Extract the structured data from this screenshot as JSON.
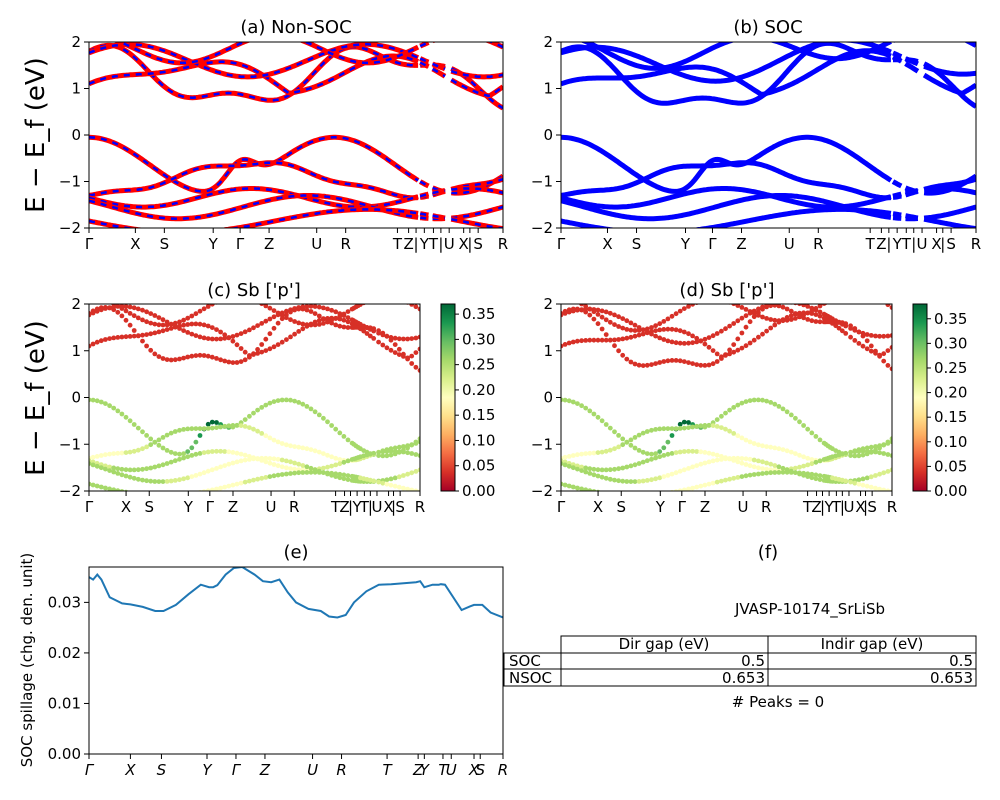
{
  "kpoint_labels": [
    "Γ",
    "X",
    "S",
    "Y",
    "Γ",
    "Z",
    "U",
    "R",
    "T",
    "Z",
    "|",
    "Y",
    "T",
    "|",
    "U",
    "X",
    "|",
    "S",
    "R"
  ],
  "kpoint_positions": [
    0,
    0.112,
    0.182,
    0.3,
    0.365,
    0.435,
    0.55,
    0.62,
    0.745,
    0.772,
    0.79,
    0.81,
    0.832,
    0.85,
    0.87,
    0.905,
    0.92,
    0.94,
    1.0
  ],
  "kpoint_labels_italic": [
    "Γ",
    "X",
    "S",
    "Y",
    "Γ",
    "Z",
    "U",
    "R",
    "T",
    "Z",
    "Y",
    "T",
    "U",
    "X",
    "S",
    "R"
  ],
  "kpoint_positions_italic": [
    0,
    0.1,
    0.175,
    0.285,
    0.355,
    0.425,
    0.54,
    0.61,
    0.72,
    0.795,
    0.81,
    0.855,
    0.875,
    0.93,
    0.945,
    1.0
  ],
  "band_ylabel": "E − E_f (eV)",
  "chart_data": [
    {
      "id": "a",
      "type": "line",
      "title": "(a) Non-SOC",
      "ylim": [
        -2,
        2
      ],
      "yticks": [
        -2,
        -1,
        0,
        1,
        2
      ],
      "series_style": "red-blue-dashed",
      "colors": {
        "base": "#ff0000",
        "dash": "#0000ff"
      }
    },
    {
      "id": "b",
      "type": "line",
      "title": "(b) SOC",
      "ylim": [
        -2,
        2
      ],
      "yticks": [
        -2,
        -1,
        0,
        1,
        2
      ],
      "series_style": "blue-solid",
      "colors": {
        "base": "#0000ff"
      }
    },
    {
      "id": "c",
      "type": "scatter",
      "title": "(c)  Sb ['p']",
      "ylim": [
        -2,
        2
      ],
      "yticks": [
        -2,
        -1,
        0,
        1,
        2
      ],
      "colormap": "RdYlGn",
      "colorbar": {
        "min": 0.0,
        "max": 0.37,
        "ticks": [
          "0.00",
          "0.05",
          "0.10",
          "0.15",
          "0.20",
          "0.25",
          "0.30",
          "0.35"
        ]
      }
    },
    {
      "id": "d",
      "type": "scatter",
      "title": "(d) Sb ['p']",
      "ylim": [
        -2,
        2
      ],
      "yticks": [
        -2,
        -1,
        0,
        1,
        2
      ],
      "colormap": "RdYlGn",
      "colorbar": {
        "min": 0.0,
        "max": 0.38,
        "ticks": [
          "0.00",
          "0.05",
          "0.10",
          "0.15",
          "0.20",
          "0.25",
          "0.30",
          "0.35"
        ]
      }
    },
    {
      "id": "e",
      "type": "line",
      "title": "(e)",
      "ylabel": "SOC spillage (chg. den. unit)",
      "ylim": [
        0,
        0.037
      ],
      "yticks": [
        "0.00",
        "0.01",
        "0.02",
        "0.03"
      ],
      "color": "#1f77b4",
      "x": [
        0,
        0.01,
        0.02,
        0.03,
        0.05,
        0.08,
        0.1,
        0.13,
        0.16,
        0.18,
        0.21,
        0.24,
        0.27,
        0.29,
        0.3,
        0.31,
        0.33,
        0.35,
        0.37,
        0.4,
        0.42,
        0.44,
        0.46,
        0.48,
        0.5,
        0.53,
        0.56,
        0.58,
        0.6,
        0.62,
        0.64,
        0.67,
        0.7,
        0.73,
        0.76,
        0.79,
        0.8,
        0.81,
        0.83,
        0.845,
        0.85,
        0.86,
        0.9,
        0.92,
        0.93,
        0.95,
        0.97,
        1.0
      ],
      "y": [
        0.035,
        0.0345,
        0.0355,
        0.0345,
        0.031,
        0.0298,
        0.0296,
        0.0291,
        0.0283,
        0.0283,
        0.0295,
        0.0316,
        0.0335,
        0.033,
        0.033,
        0.0334,
        0.0355,
        0.0368,
        0.037,
        0.0355,
        0.0342,
        0.034,
        0.0345,
        0.032,
        0.03,
        0.0287,
        0.0283,
        0.0272,
        0.027,
        0.0275,
        0.03,
        0.0322,
        0.0335,
        0.0336,
        0.0338,
        0.034,
        0.0342,
        0.033,
        0.0335,
        0.0335,
        0.0336,
        0.0335,
        0.0285,
        0.0292,
        0.0295,
        0.0295,
        0.028,
        0.027
      ]
    }
  ],
  "panel_f": {
    "title": "(f)",
    "material": "JVASP-10174_SrLiSb",
    "table": {
      "columns": [
        "Dir gap (eV)",
        "Indir gap (eV)"
      ],
      "rows": [
        {
          "label": "SOC",
          "dir": "0.5",
          "indir": "0.5"
        },
        {
          "label": "NSOC",
          "dir": "0.653",
          "indir": "0.653"
        }
      ]
    },
    "peaks": "# Peaks = 0"
  }
}
